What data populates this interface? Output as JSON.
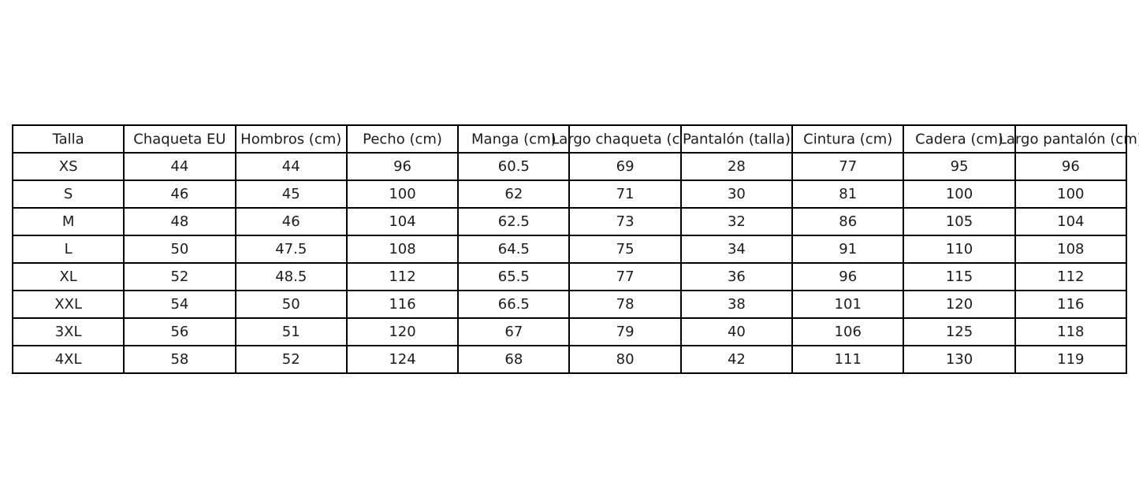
{
  "figure": {
    "background": "#ffffff"
  },
  "colors": {
    "border": "#000000",
    "text": "#1c1c1c",
    "cell_background": "#ffffff"
  },
  "chart_data": {
    "type": "table",
    "title": "",
    "columns": [
      "Talla",
      "Chaqueta EU",
      "Hombros (cm)",
      "Pecho (cm)",
      "Manga (cm)",
      "Largo chaqueta (cm)",
      "Pantalón (talla)",
      "Cintura (cm)",
      "Cadera (cm)",
      "Largo pantalón (cm)"
    ],
    "rows": [
      [
        "XS",
        "44",
        "44",
        "96",
        "60.5",
        "69",
        "28",
        "77",
        "95",
        "96"
      ],
      [
        "S",
        "46",
        "45",
        "100",
        "62",
        "71",
        "30",
        "81",
        "100",
        "100"
      ],
      [
        "M",
        "48",
        "46",
        "104",
        "62.5",
        "73",
        "32",
        "86",
        "105",
        "104"
      ],
      [
        "L",
        "50",
        "47.5",
        "108",
        "64.5",
        "75",
        "34",
        "91",
        "110",
        "108"
      ],
      [
        "XL",
        "52",
        "48.5",
        "112",
        "65.5",
        "77",
        "36",
        "96",
        "115",
        "112"
      ],
      [
        "XXL",
        "54",
        "50",
        "116",
        "66.5",
        "78",
        "38",
        "101",
        "120",
        "116"
      ],
      [
        "3XL",
        "56",
        "51",
        "120",
        "67",
        "79",
        "40",
        "106",
        "125",
        "118"
      ],
      [
        "4XL",
        "58",
        "52",
        "124",
        "68",
        "80",
        "42",
        "111",
        "130",
        "119"
      ]
    ]
  }
}
